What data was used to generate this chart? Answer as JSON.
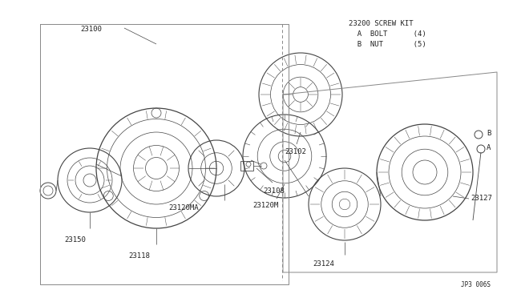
{
  "bg_color": "#ffffff",
  "line_color": "#444444",
  "text_color": "#222222",
  "diagram_id": "JP3 006S",
  "screw_kit_line1": "23200 SCREW KIT",
  "screw_kit_line2": "  A  BOLT      (4)",
  "screw_kit_line3": "  B  NUT       (5)",
  "label_fontsize": 6.5,
  "small_fontsize": 5.5
}
